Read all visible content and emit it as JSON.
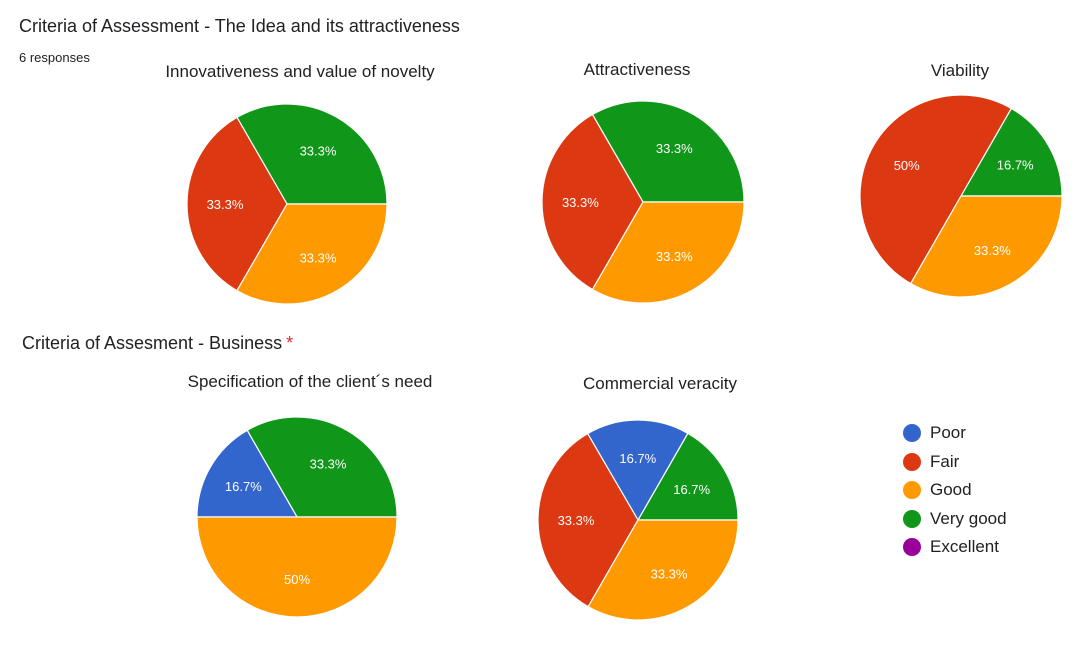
{
  "sections": [
    {
      "title": "Criteria of Assessment - The Idea and its attractiveness",
      "responses": "6 responses",
      "required": ""
    },
    {
      "title": "Criteria of Assesment - Business",
      "responses": "",
      "required": "*"
    }
  ],
  "colors": {
    "Poor": "#3366cc",
    "Fair": "#dc3912",
    "Good": "#ff9900",
    "Very good": "#109618",
    "Excellent": "#990099"
  },
  "legend": [
    "Poor",
    "Fair",
    "Good",
    "Very good",
    "Excellent"
  ],
  "chart_data": [
    {
      "type": "pie",
      "title": "Innovativeness and value of novelty",
      "slices": [
        {
          "label": "Very good",
          "value": 33.3
        },
        {
          "label": "Fair",
          "value": 33.3
        },
        {
          "label": "Good",
          "value": 33.3
        }
      ]
    },
    {
      "type": "pie",
      "title": "Attractiveness",
      "slices": [
        {
          "label": "Very good",
          "value": 33.3
        },
        {
          "label": "Fair",
          "value": 33.3
        },
        {
          "label": "Good",
          "value": 33.3
        }
      ]
    },
    {
      "type": "pie",
      "title": "Viability",
      "slices": [
        {
          "label": "Very good",
          "value": 16.7
        },
        {
          "label": "Fair",
          "value": 50
        },
        {
          "label": "Good",
          "value": 33.3
        }
      ]
    },
    {
      "type": "pie",
      "title": "Specification of the client´s need",
      "slices": [
        {
          "label": "Very good",
          "value": 33.3
        },
        {
          "label": "Poor",
          "value": 16.7
        },
        {
          "label": "Good",
          "value": 50
        }
      ]
    },
    {
      "type": "pie",
      "title": "Commercial veracity",
      "slices": [
        {
          "label": "Very good",
          "value": 16.7
        },
        {
          "label": "Poor",
          "value": 16.7
        },
        {
          "label": "Fair",
          "value": 33.3
        },
        {
          "label": "Good",
          "value": 33.3
        }
      ]
    }
  ]
}
